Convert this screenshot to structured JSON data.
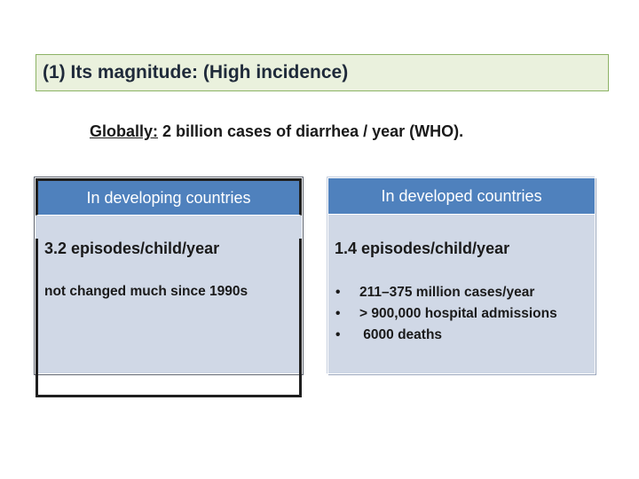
{
  "title": "(1) Its magnitude: (High incidence)",
  "subtitle": {
    "prefix": "Globally:",
    "text": " 2 billion cases of diarrhea / year  (WHO)."
  },
  "developing": {
    "header": "In developing countries",
    "stat": "3.2 episodes/child/year",
    "note": "not changed much since 1990s"
  },
  "developed": {
    "header": "In developed countries",
    "stat": "1.4 episodes/child/year",
    "bullets": [
      "211–375 million cases/year",
      "> 900,000 hospital admissions",
      " 6000 deaths"
    ]
  },
  "colors": {
    "header_blue": "#4f81bd",
    "card_fill": "#d0d8e6",
    "title_fill": "#eaf1dd",
    "title_border": "#8db365"
  }
}
